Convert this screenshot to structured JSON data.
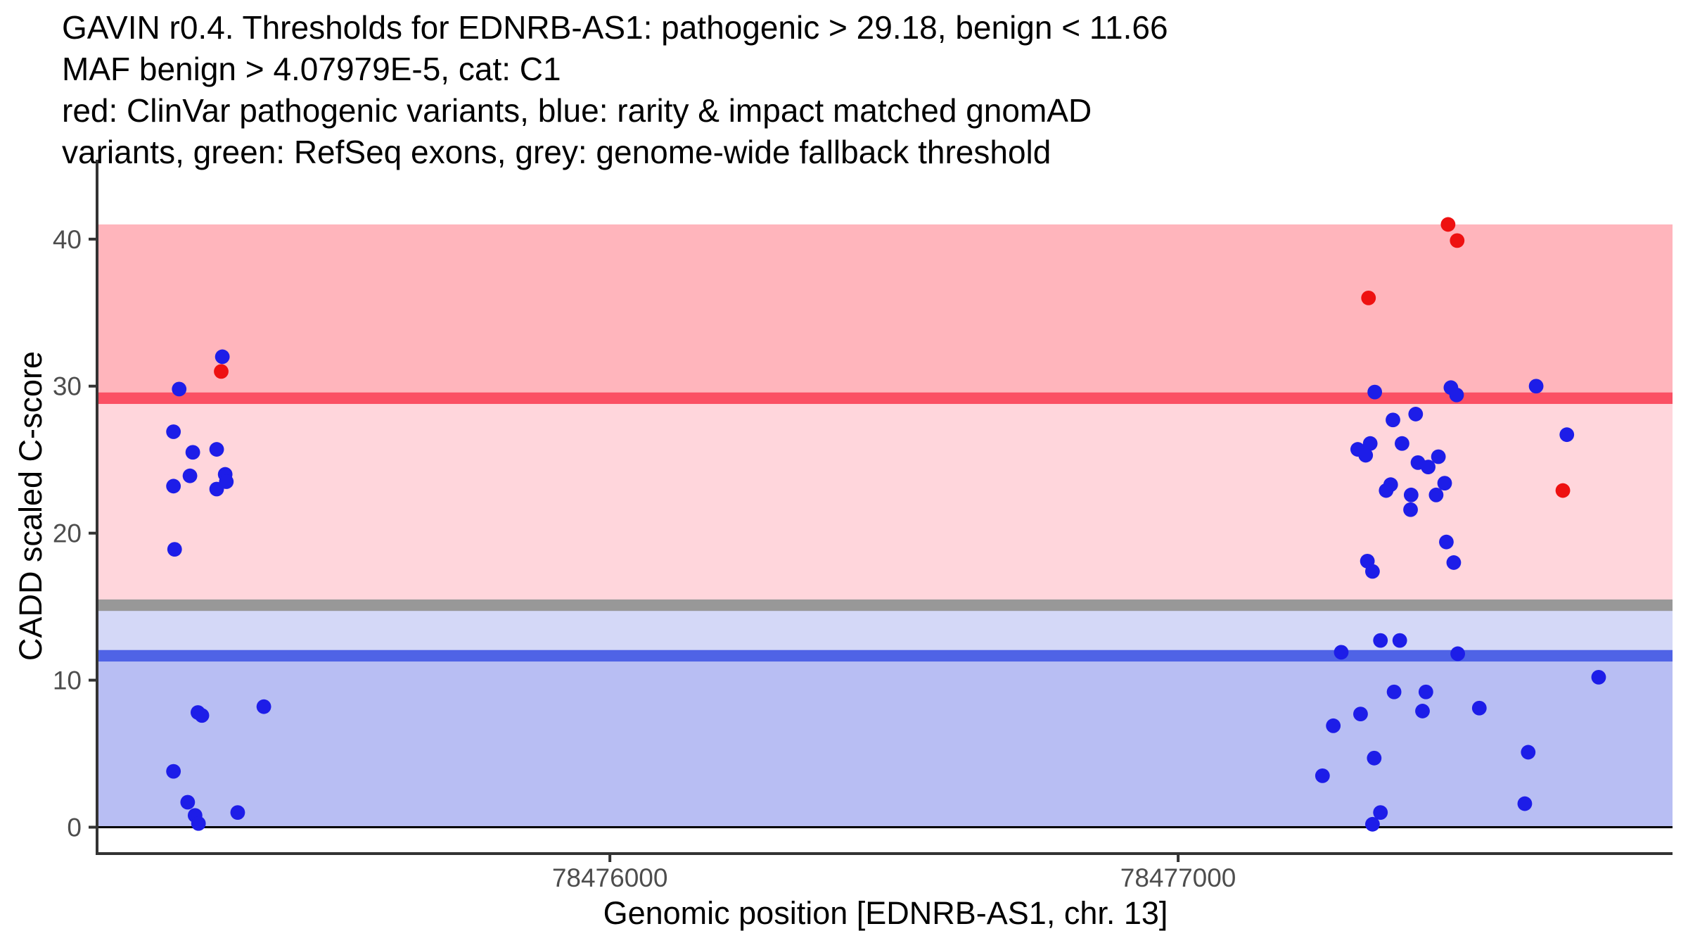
{
  "chart_data": {
    "type": "scatter",
    "title_lines": [
      "GAVIN r0.4. Thresholds for EDNRB-AS1: pathogenic > 29.18, benign < 11.66",
      "MAF benign > 4.07979E-5, cat: C1",
      "red: ClinVar pathogenic variants, blue: rarity & impact matched gnomAD",
      "variants, green: RefSeq exons, grey: genome-wide fallback threshold"
    ],
    "xlabel": "Genomic position [EDNRB-AS1, chr. 13]",
    "ylabel": "CADD scaled C-score",
    "grid": false,
    "legend_position": "none",
    "x_axis": {
      "domain": [
        78475100,
        78477870
      ],
      "ticks": [
        {
          "value": 78476000,
          "label": "78476000"
        },
        {
          "value": 78477000,
          "label": "78477000"
        }
      ]
    },
    "y_axis": {
      "domain": [
        -1.7,
        45.4
      ],
      "ticks": [
        {
          "value": 0,
          "label": "0"
        },
        {
          "value": 10,
          "label": "10"
        },
        {
          "value": 20,
          "label": "20"
        },
        {
          "value": 30,
          "label": "30"
        },
        {
          "value": 40,
          "label": "40"
        }
      ]
    },
    "thresholds": {
      "pathogenic": 29.18,
      "benign": 11.66,
      "genome_wide_fallback": 15.1,
      "band_top": 41,
      "maf_benign": "4.07979E-5",
      "category": "C1",
      "line_half_units": 0.39
    },
    "bands": [
      {
        "name": "band-above-pathogenic-threshold",
        "from": 29.18,
        "to": 41,
        "color": "#FFB5BC"
      },
      {
        "name": "band-intermediate-pink",
        "from": 15.1,
        "to": 29.18,
        "color": "#FFD6DC"
      },
      {
        "name": "band-intermediate-blue",
        "from": 11.66,
        "to": 15.1,
        "color": "#D4D8F7"
      },
      {
        "name": "band-below-benign-threshold",
        "from": 0,
        "to": 11.66,
        "color": "#B8BEF3"
      }
    ],
    "threshold_lines": [
      {
        "name": "fallback-threshold-line",
        "value": 15.1,
        "color": "#989898"
      },
      {
        "name": "pathogenic-threshold-line",
        "value": 29.18,
        "color": "#FB5064"
      },
      {
        "name": "benign-threshold-line",
        "value": 11.66,
        "color": "#4F63E6"
      }
    ],
    "zero_line": {
      "value": 0,
      "color": "#000000"
    },
    "series": [
      {
        "name": "rarity & impact matched gnomAD variants",
        "color": "#1D1DE8",
        "point_name": "gnomad-variant-point",
        "points": [
          [
            78475318,
            32.0
          ],
          [
            78475242,
            29.8
          ],
          [
            78475232,
            26.9
          ],
          [
            78475266,
            25.5
          ],
          [
            78475308,
            25.7
          ],
          [
            78475261,
            23.9
          ],
          [
            78475232,
            23.2
          ],
          [
            78475323,
            24.0
          ],
          [
            78475325,
            23.5
          ],
          [
            78475308,
            23.0
          ],
          [
            78475234,
            18.9
          ],
          [
            78475275,
            7.8
          ],
          [
            78475282,
            7.6
          ],
          [
            78475391,
            8.2
          ],
          [
            78475232,
            3.8
          ],
          [
            78475257,
            1.7
          ],
          [
            78475270,
            0.8
          ],
          [
            78475276,
            0.25
          ],
          [
            78475345,
            1.0
          ],
          [
            78477630,
            30.0
          ],
          [
            78477346,
            29.6
          ],
          [
            78477480,
            29.9
          ],
          [
            78477490,
            29.4
          ],
          [
            78477418,
            28.1
          ],
          [
            78477378,
            27.7
          ],
          [
            78477394,
            26.1
          ],
          [
            78477338,
            26.1
          ],
          [
            78477316,
            25.7
          ],
          [
            78477330,
            25.3
          ],
          [
            78477422,
            24.8
          ],
          [
            78477440,
            24.5
          ],
          [
            78477458,
            25.2
          ],
          [
            78477469,
            23.4
          ],
          [
            78477374,
            23.3
          ],
          [
            78477366,
            22.9
          ],
          [
            78477410,
            22.6
          ],
          [
            78477454,
            22.6
          ],
          [
            78477409,
            21.6
          ],
          [
            78477472,
            19.4
          ],
          [
            78477485,
            18.0
          ],
          [
            78477333,
            18.1
          ],
          [
            78477342,
            17.4
          ],
          [
            78477684,
            26.7
          ],
          [
            78477356,
            12.7
          ],
          [
            78477390,
            12.7
          ],
          [
            78477287,
            11.9
          ],
          [
            78477492,
            11.8
          ],
          [
            78477740,
            10.2
          ],
          [
            78477380,
            9.2
          ],
          [
            78477436,
            9.2
          ],
          [
            78477430,
            7.9
          ],
          [
            78477530,
            8.1
          ],
          [
            78477321,
            7.7
          ],
          [
            78477273,
            6.9
          ],
          [
            78477345,
            4.7
          ],
          [
            78477254,
            3.5
          ],
          [
            78477616,
            5.1
          ],
          [
            78477610,
            1.6
          ],
          [
            78477356,
            1.0
          ],
          [
            78477342,
            0.2
          ]
        ]
      },
      {
        "name": "ClinVar pathogenic variants",
        "color": "#EE1111",
        "point_name": "clinvar-variant-point",
        "points": [
          [
            78475316,
            31.0
          ],
          [
            78477335,
            36.0
          ],
          [
            78477475,
            41.0
          ],
          [
            78477491,
            39.9
          ],
          [
            78477677,
            22.9
          ]
        ]
      }
    ],
    "axis_style": {
      "line_color": "#333333",
      "tick_label_color": "#4d4d4d"
    }
  }
}
